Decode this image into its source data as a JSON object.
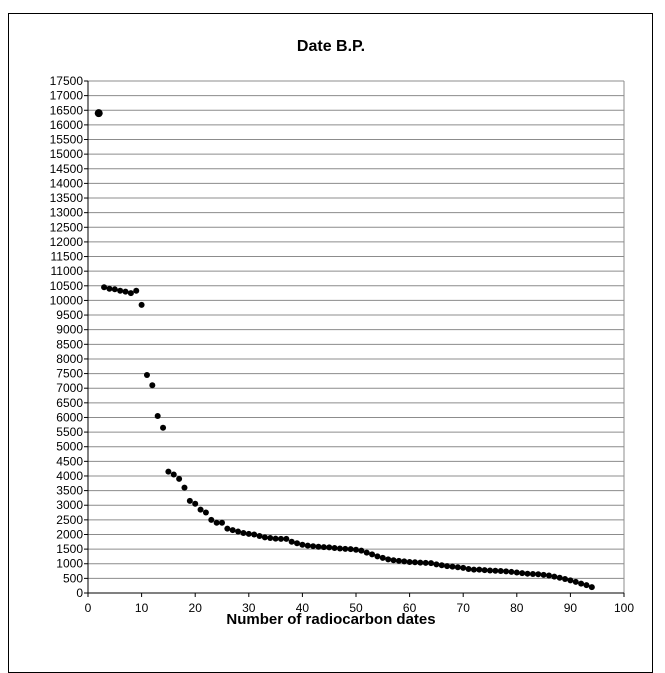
{
  "chart_data": {
    "type": "scatter",
    "title": "Date B.P.",
    "xlabel": "Number of radiocarbon dates",
    "ylabel": "",
    "xlim": [
      0,
      100
    ],
    "ylim": [
      0,
      17500
    ],
    "x_ticks": [
      0,
      10,
      20,
      30,
      40,
      50,
      60,
      70,
      80,
      90,
      100
    ],
    "y_ticks": [
      0,
      500,
      1000,
      1500,
      2000,
      2500,
      3000,
      3500,
      4000,
      4500,
      5000,
      5500,
      6000,
      6500,
      7000,
      7500,
      8000,
      8500,
      9000,
      9500,
      10000,
      10500,
      11000,
      11500,
      12000,
      12500,
      13000,
      13500,
      14000,
      14500,
      15000,
      15500,
      16000,
      16500,
      17000,
      17500
    ],
    "grid": "horizontal",
    "legend": "none",
    "marker_color": "#000000",
    "series": [
      {
        "x": [
          2,
          3,
          4,
          5,
          6,
          7,
          8,
          9,
          10,
          11,
          12,
          13,
          14,
          15,
          16,
          17,
          18,
          19,
          20,
          21,
          22,
          23,
          24,
          25,
          26,
          27,
          28,
          29,
          30,
          31,
          32,
          33,
          34,
          35,
          36,
          37,
          38,
          39,
          40,
          41,
          42,
          43,
          44,
          45,
          46,
          47,
          48,
          49,
          50,
          51,
          52,
          53,
          54,
          55,
          56,
          57,
          58,
          59,
          60,
          61,
          62,
          63,
          64,
          65,
          66,
          67,
          68,
          69,
          70,
          71,
          72,
          73,
          74,
          75,
          76,
          77,
          78,
          79,
          80,
          81,
          82,
          83,
          84,
          85,
          86,
          87,
          88,
          89,
          90,
          91,
          92,
          93,
          94
        ],
        "y": [
          16400,
          10450,
          10400,
          10380,
          10330,
          10300,
          10250,
          10330,
          9850,
          7450,
          7100,
          6050,
          5650,
          4150,
          4050,
          3900,
          3600,
          3150,
          3050,
          2850,
          2750,
          2500,
          2400,
          2400,
          2200,
          2150,
          2100,
          2050,
          2020,
          2000,
          1950,
          1900,
          1880,
          1860,
          1850,
          1850,
          1750,
          1700,
          1650,
          1620,
          1600,
          1580,
          1570,
          1560,
          1540,
          1520,
          1510,
          1500,
          1480,
          1450,
          1380,
          1320,
          1250,
          1200,
          1150,
          1120,
          1100,
          1080,
          1060,
          1050,
          1040,
          1030,
          1020,
          980,
          950,
          920,
          900,
          880,
          860,
          820,
          800,
          800,
          780,
          770,
          760,
          750,
          740,
          720,
          700,
          680,
          660,
          650,
          640,
          620,
          600,
          560,
          520,
          480,
          430,
          380,
          320,
          270,
          200
        ]
      }
    ]
  }
}
